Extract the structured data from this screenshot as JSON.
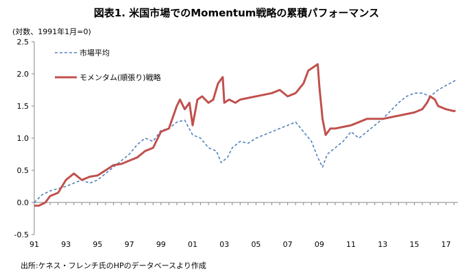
{
  "chart_data": {
    "type": "line",
    "title": "図表1. 米国市場でのMomentum戦略の累積パフォーマンス",
    "ylabel": "(対数、1991年1月=0)",
    "source": "出所:ケネス・フレンチ氏のHPのデータベースより作成",
    "ylim": [
      -0.5,
      2.5
    ],
    "yticks": [
      "2.5",
      "2.0",
      "1.5",
      "1.0",
      "0.5",
      "0.0",
      "-0.5"
    ],
    "ytick_values": [
      2.5,
      2.0,
      1.5,
      1.0,
      0.5,
      0.0,
      -0.5
    ],
    "xlim": [
      1991.0,
      2017.75
    ],
    "xticks": [
      "91",
      "93",
      "95",
      "97",
      "99",
      "01",
      "03",
      "05",
      "07",
      "09",
      "11",
      "13",
      "15",
      "17"
    ],
    "xtick_values": [
      1991,
      1993,
      1995,
      1997,
      1999,
      2001,
      2003,
      2005,
      2007,
      2009,
      2011,
      2013,
      2015,
      2017
    ],
    "grid": false,
    "legend_position": "top-left",
    "series": [
      {
        "name": "市場平均",
        "color": "#4f81bd",
        "style": "dashed",
        "x": [
          1991.0,
          1991.5,
          1992.0,
          1993.0,
          1994.0,
          1994.5,
          1995.0,
          1995.5,
          1996.0,
          1997.0,
          1997.5,
          1998.0,
          1998.5,
          1999.0,
          1999.5,
          2000.0,
          2000.5,
          2001.0,
          2001.5,
          2002.0,
          2002.5,
          2002.8,
          2003.2,
          2003.5,
          2004.0,
          2004.5,
          2005.0,
          2006.0,
          2007.0,
          2007.5,
          2008.0,
          2008.5,
          2008.9,
          2009.2,
          2009.5,
          2010.0,
          2010.5,
          2011.0,
          2011.5,
          2012.0,
          2013.0,
          2014.0,
          2014.5,
          2015.0,
          2015.5,
          2016.0,
          2016.5,
          2017.0,
          2017.6
        ],
        "y": [
          0.0,
          0.12,
          0.18,
          0.25,
          0.35,
          0.3,
          0.35,
          0.45,
          0.55,
          0.75,
          0.9,
          1.0,
          0.95,
          1.12,
          1.15,
          1.25,
          1.28,
          1.05,
          1.0,
          0.85,
          0.8,
          0.62,
          0.7,
          0.85,
          0.95,
          0.92,
          1.0,
          1.1,
          1.2,
          1.25,
          1.1,
          0.95,
          0.7,
          0.55,
          0.75,
          0.85,
          0.95,
          1.1,
          1.0,
          1.1,
          1.3,
          1.55,
          1.65,
          1.7,
          1.7,
          1.65,
          1.75,
          1.82,
          1.9
        ]
      },
      {
        "name": "モメンタム(順張り)戦略",
        "color": "#c0504d",
        "style": "solid",
        "x": [
          1991.0,
          1991.3,
          1991.7,
          1992.0,
          1992.5,
          1993.0,
          1993.5,
          1994.0,
          1994.5,
          1995.0,
          1995.5,
          1996.0,
          1996.5,
          1997.0,
          1997.5,
          1998.0,
          1998.5,
          1999.0,
          1999.5,
          2000.0,
          2000.2,
          2000.5,
          2000.8,
          2001.0,
          2001.3,
          2001.6,
          2002.0,
          2002.3,
          2002.6,
          2002.9,
          2003.0,
          2003.3,
          2003.7,
          2004.0,
          2005.0,
          2006.0,
          2006.5,
          2007.0,
          2007.5,
          2008.0,
          2008.3,
          2008.6,
          2008.9,
          2009.0,
          2009.2,
          2009.4,
          2009.7,
          2010.0,
          2011.0,
          2012.0,
          2013.0,
          2014.0,
          2015.0,
          2015.5,
          2015.8,
          2016.0,
          2016.3,
          2016.5,
          2017.0,
          2017.5,
          2017.6
        ],
        "y": [
          -0.05,
          -0.05,
          0.0,
          0.1,
          0.15,
          0.35,
          0.45,
          0.35,
          0.4,
          0.42,
          0.5,
          0.58,
          0.6,
          0.65,
          0.7,
          0.8,
          0.85,
          1.1,
          1.15,
          1.5,
          1.6,
          1.45,
          1.55,
          1.2,
          1.6,
          1.65,
          1.55,
          1.6,
          1.85,
          1.95,
          1.55,
          1.6,
          1.55,
          1.6,
          1.65,
          1.7,
          1.75,
          1.65,
          1.7,
          1.85,
          2.05,
          2.1,
          2.15,
          1.8,
          1.3,
          1.05,
          1.15,
          1.15,
          1.2,
          1.3,
          1.3,
          1.35,
          1.4,
          1.45,
          1.55,
          1.65,
          1.6,
          1.5,
          1.45,
          1.42,
          1.43
        ]
      }
    ]
  }
}
